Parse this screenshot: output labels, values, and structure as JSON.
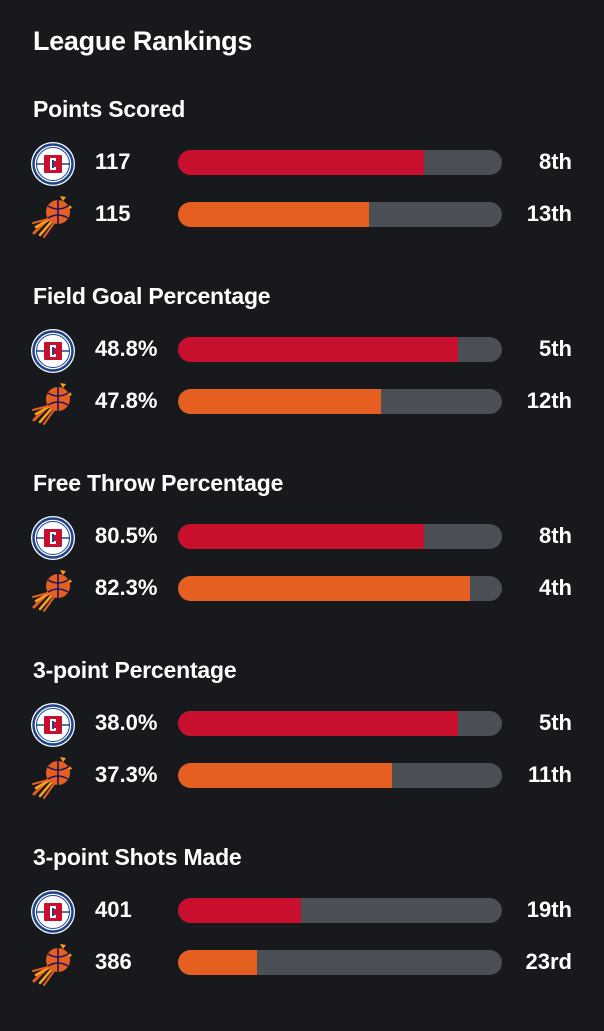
{
  "title": "League Rankings",
  "colors": {
    "background": "#17191d",
    "track": "#4a4e55",
    "clippers": "#c8102e",
    "suns": "#e56020"
  },
  "icons": {
    "team1": "la-clippers-logo-icon",
    "team2": "phoenix-suns-logo-icon"
  },
  "sections": [
    {
      "title": "Points Scored",
      "rows": [
        {
          "team": "clippers",
          "value": "117",
          "rank": "8th",
          "fill": 0.76
        },
        {
          "team": "suns",
          "value": "115",
          "rank": "13th",
          "fill": 0.59
        }
      ]
    },
    {
      "title": "Field Goal Percentage",
      "rows": [
        {
          "team": "clippers",
          "value": "48.8%",
          "rank": "5th",
          "fill": 0.865
        },
        {
          "team": "suns",
          "value": "47.8%",
          "rank": "12th",
          "fill": 0.625
        }
      ]
    },
    {
      "title": "Free Throw Percentage",
      "rows": [
        {
          "team": "clippers",
          "value": "80.5%",
          "rank": "8th",
          "fill": 0.76
        },
        {
          "team": "suns",
          "value": "82.3%",
          "rank": "4th",
          "fill": 0.9
        }
      ]
    },
    {
      "title": "3-point Percentage",
      "rows": [
        {
          "team": "clippers",
          "value": "38.0%",
          "rank": "5th",
          "fill": 0.865
        },
        {
          "team": "suns",
          "value": "37.3%",
          "rank": "11th",
          "fill": 0.66
        }
      ]
    },
    {
      "title": "3-point Shots Made",
      "rows": [
        {
          "team": "clippers",
          "value": "401",
          "rank": "19th",
          "fill": 0.38
        },
        {
          "team": "suns",
          "value": "386",
          "rank": "23rd",
          "fill": 0.245
        }
      ]
    }
  ]
}
